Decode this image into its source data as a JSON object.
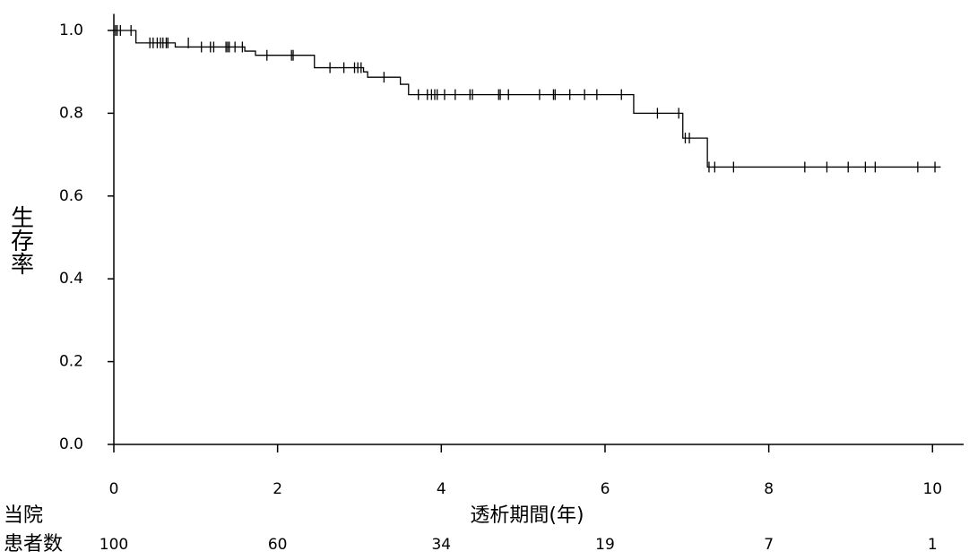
{
  "chart_data": {
    "type": "survival",
    "x_label": "透析期間(年)",
    "y_label": "生存率",
    "xlim": [
      0,
      10.38
    ],
    "ylim": [
      0,
      1.04
    ],
    "xticks": [
      0,
      2,
      4,
      6,
      8,
      10
    ],
    "yticks": [
      {
        "value": 0,
        "label": "0.0"
      },
      0.2,
      0.4,
      0.6,
      0.8,
      {
        "value": 1,
        "label": "1.0"
      }
    ],
    "color": "#000000",
    "step": {
      "x": [
        0,
        0.27,
        0.75,
        1.6,
        1.73,
        2.45,
        3.05,
        3.1,
        3.5,
        3.6,
        6.35,
        6.95,
        7.25,
        10.1
      ],
      "values": [
        1.0,
        0.97,
        0.96,
        0.95,
        0.94,
        0.91,
        0.9,
        0.887,
        0.87,
        0.845,
        0.8,
        0.74,
        0.67,
        0.67
      ]
    },
    "censored": {
      "x": [
        0.02,
        0.04,
        0.08,
        0.21,
        0.44,
        0.48,
        0.53,
        0.57,
        0.6,
        0.64,
        0.66,
        0.91,
        1.07,
        1.18,
        1.22,
        1.37,
        1.39,
        1.41,
        1.48,
        1.57,
        1.87,
        2.17,
        2.19,
        2.64,
        2.81,
        2.94,
        2.98,
        3.02,
        3.3,
        3.72,
        3.83,
        3.88,
        3.92,
        3.95,
        4.04,
        4.17,
        4.35,
        4.38,
        4.7,
        4.72,
        4.82,
        5.2,
        5.37,
        5.39,
        5.57,
        5.75,
        5.9,
        6.2,
        6.64,
        6.9,
        6.98,
        7.03,
        7.27,
        7.34,
        7.57,
        8.44,
        8.71,
        8.97,
        9.18,
        9.3,
        9.82,
        10.03
      ],
      "values": [
        1.0,
        1.0,
        1.0,
        1.0,
        0.97,
        0.97,
        0.97,
        0.97,
        0.97,
        0.97,
        0.97,
        0.97,
        0.96,
        0.96,
        0.96,
        0.96,
        0.96,
        0.96,
        0.96,
        0.96,
        0.94,
        0.94,
        0.94,
        0.91,
        0.91,
        0.91,
        0.91,
        0.91,
        0.887,
        0.845,
        0.845,
        0.845,
        0.845,
        0.845,
        0.845,
        0.845,
        0.845,
        0.845,
        0.845,
        0.845,
        0.845,
        0.845,
        0.845,
        0.845,
        0.845,
        0.845,
        0.845,
        0.845,
        0.8,
        0.8,
        0.74,
        0.74,
        0.67,
        0.67,
        0.67,
        0.67,
        0.67,
        0.67,
        0.67,
        0.67,
        0.67,
        0.67
      ]
    },
    "at_risk": {
      "label": [
        "当院",
        "患者数"
      ],
      "values": [
        100,
        60,
        34,
        19,
        7,
        1
      ]
    }
  }
}
